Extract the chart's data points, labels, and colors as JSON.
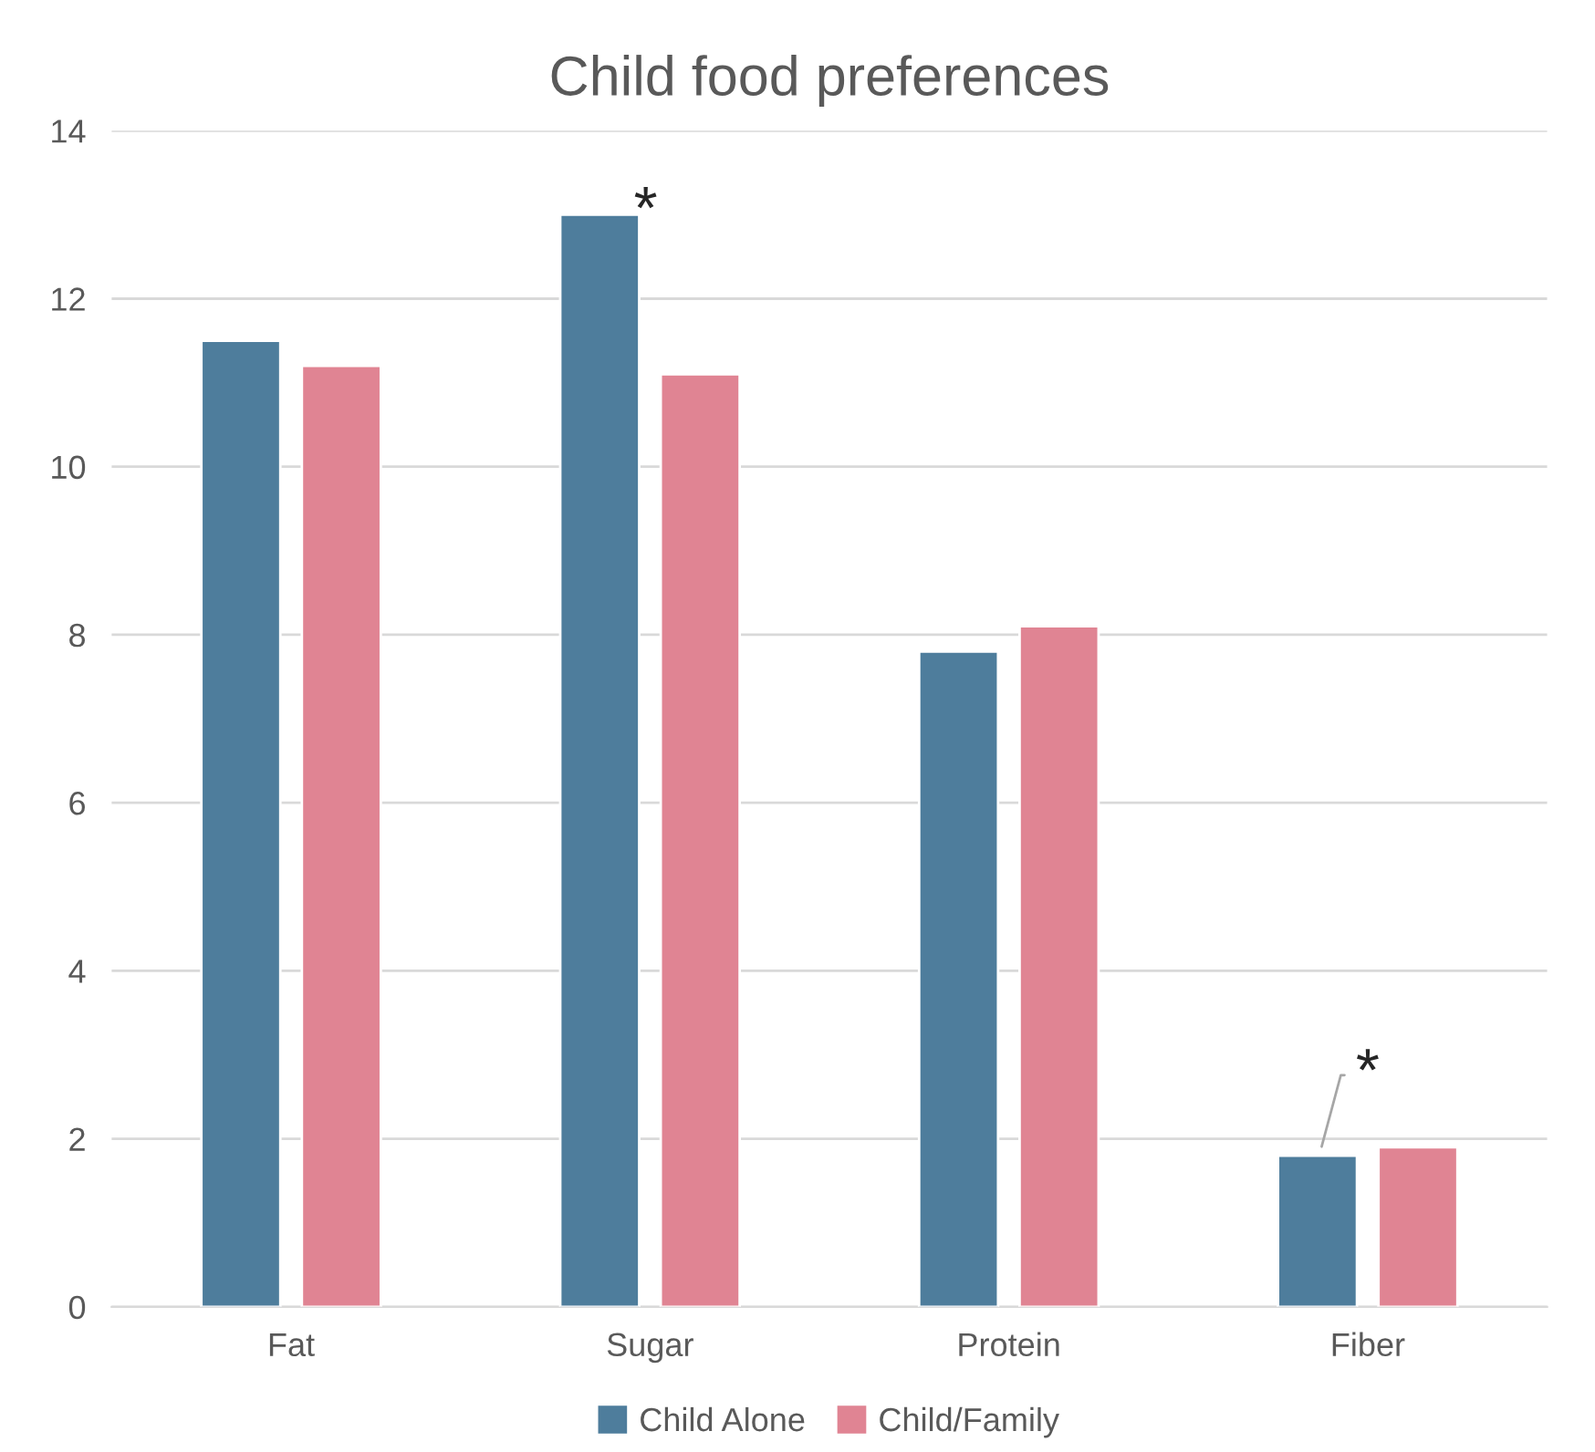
{
  "chart_data": {
    "type": "bar",
    "title": "Child food preferences",
    "categories": [
      "Fat",
      "Sugar",
      "Protein",
      "Fiber"
    ],
    "series": [
      {
        "name": "Child Alone",
        "color": "#4e7d9c",
        "values": [
          11.5,
          13.0,
          7.8,
          1.8
        ]
      },
      {
        "name": "Child/Family",
        "color": "#e08493",
        "values": [
          11.2,
          11.1,
          8.1,
          1.9
        ]
      }
    ],
    "ylim": [
      0,
      14
    ],
    "yticks": [
      0,
      2,
      4,
      6,
      8,
      10,
      12,
      14
    ],
    "grid": "y",
    "legend": "bottom",
    "annotations": [
      "*",
      "*"
    ]
  }
}
